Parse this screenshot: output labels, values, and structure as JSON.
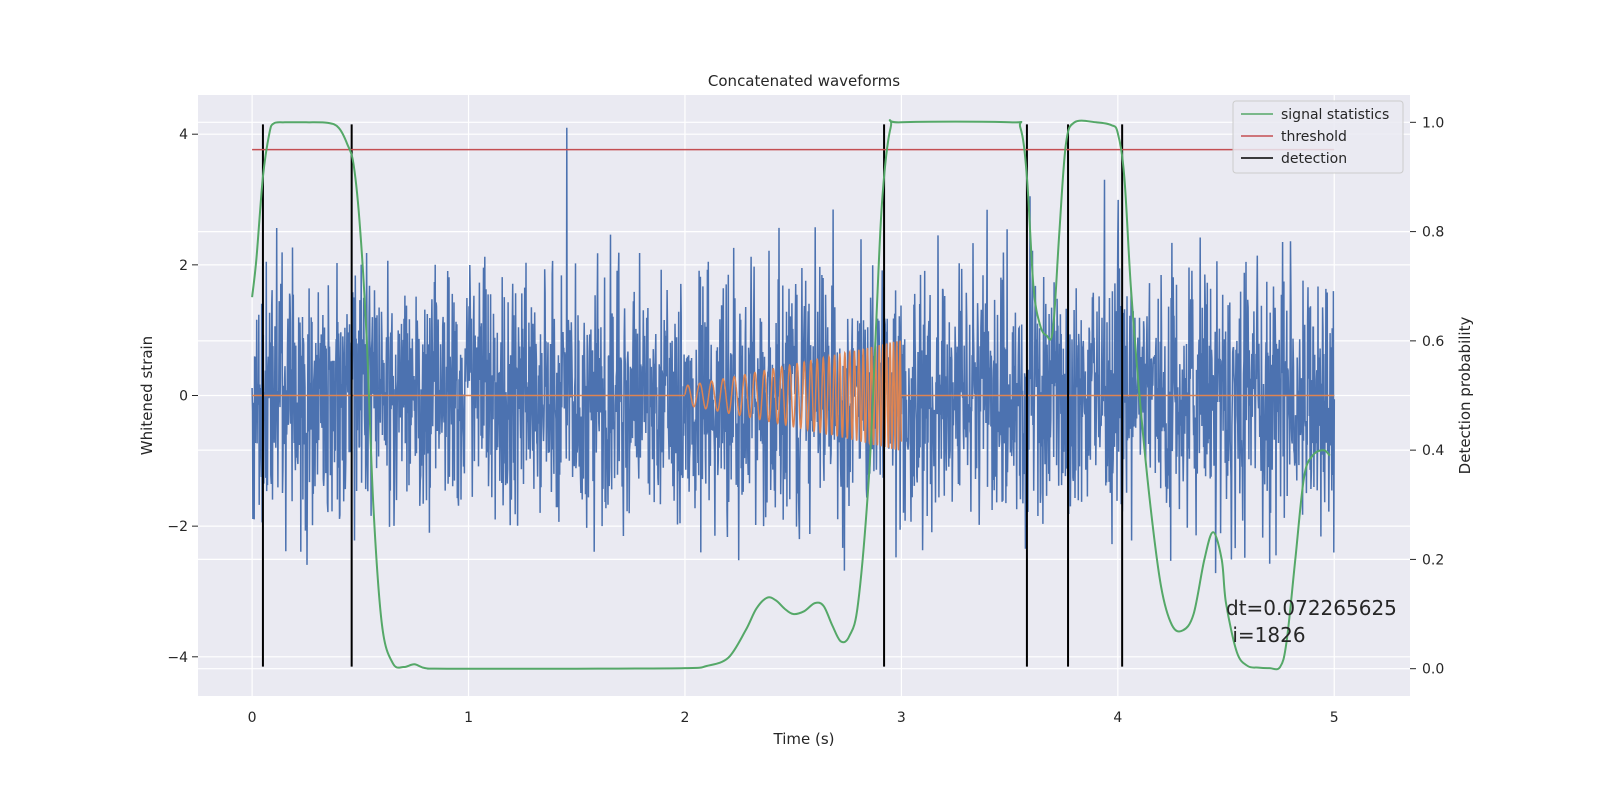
{
  "chart_data": {
    "type": "line",
    "title": "Concatenated waveforms",
    "xlabel": "Time (s)",
    "ylabel": "Whitened strain",
    "y2label": "Detection probability",
    "xlim": [
      -0.25,
      5.35
    ],
    "ylim": [
      -4.6,
      4.6
    ],
    "y2lim": [
      -0.05,
      1.05
    ],
    "xticks": [
      0,
      1,
      2,
      3,
      4,
      5
    ],
    "yticks": [
      -4,
      -2,
      0,
      2,
      4
    ],
    "y2ticks": [
      0.0,
      0.2,
      0.4,
      0.6,
      0.8,
      1.0
    ],
    "xtick_labels": [
      "0",
      "1",
      "2",
      "3",
      "4",
      "5"
    ],
    "ytick_labels": [
      "−4",
      "−2",
      "0",
      "2",
      "4"
    ],
    "y2tick_labels": [
      "0.0",
      "0.2",
      "0.4",
      "0.6",
      "0.8",
      "1.0"
    ],
    "grid": true,
    "legend_position": "top-right",
    "series": [
      {
        "name": "",
        "axis": "left",
        "color": "#4c72b0",
        "description_kind": "noise",
        "x_range": [
          0,
          5
        ],
        "amplitude": 1.0
      },
      {
        "name": "",
        "axis": "left",
        "color": "#dd8452",
        "kind": "chirp",
        "flat_ranges": [
          [
            0,
            2
          ],
          [
            3,
            5
          ]
        ],
        "chirp_range": [
          2,
          3
        ],
        "chirp_amplitude_start": 0.15,
        "chirp_amplitude_end": 0.85
      },
      {
        "name": "signal statistics",
        "axis": "right",
        "color": "#55a868",
        "x": [
          0,
          0.02,
          0.05,
          0.08,
          0.1,
          0.15,
          0.25,
          0.35,
          0.4,
          0.44,
          0.47,
          0.5,
          0.53,
          0.56,
          0.6,
          0.65,
          0.7,
          0.75,
          0.8,
          0.9,
          1.5,
          2.0,
          2.1,
          2.2,
          2.28,
          2.33,
          2.38,
          2.42,
          2.46,
          2.5,
          2.55,
          2.6,
          2.64,
          2.68,
          2.72,
          2.76,
          2.8,
          2.85,
          2.88,
          2.91,
          2.95,
          3.0,
          3.5,
          3.55,
          3.58,
          3.61,
          3.64,
          3.67,
          3.7,
          3.73,
          3.76,
          3.8,
          3.9,
          3.97,
          4.0,
          4.03,
          4.06,
          4.1,
          4.15,
          4.2,
          4.25,
          4.3,
          4.35,
          4.4,
          4.44,
          4.48,
          4.5,
          4.55,
          4.6,
          4.65,
          4.7,
          4.75,
          4.78,
          4.82,
          4.86,
          4.9,
          4.95,
          4.98
        ],
        "y": [
          0.68,
          0.75,
          0.9,
          0.98,
          0.998,
          1.0,
          1.0,
          0.999,
          0.99,
          0.96,
          0.92,
          0.8,
          0.6,
          0.3,
          0.08,
          0.01,
          0.003,
          0.008,
          0.001,
          0.0,
          0.0,
          0.001,
          0.005,
          0.02,
          0.07,
          0.11,
          0.13,
          0.125,
          0.11,
          0.1,
          0.105,
          0.12,
          0.115,
          0.08,
          0.05,
          0.06,
          0.12,
          0.35,
          0.6,
          0.85,
          0.99,
          1.0,
          1.0,
          0.99,
          0.9,
          0.7,
          0.63,
          0.61,
          0.62,
          0.8,
          0.96,
          1.0,
          1.0,
          0.995,
          0.98,
          0.9,
          0.7,
          0.5,
          0.3,
          0.15,
          0.08,
          0.07,
          0.1,
          0.2,
          0.25,
          0.2,
          0.12,
          0.03,
          0.005,
          0.002,
          0.001,
          0.003,
          0.05,
          0.2,
          0.35,
          0.39,
          0.4,
          0.39
        ]
      },
      {
        "name": "threshold",
        "axis": "right",
        "color": "#c44e52",
        "x": [
          0,
          5
        ],
        "y": [
          0.95,
          0.95
        ]
      },
      {
        "name": "detection",
        "axis": "left",
        "color": "#000000",
        "kind": "vlines",
        "x": [
          0.05,
          0.46,
          2.92,
          3.58,
          3.77,
          4.02
        ],
        "ymin": -4.15,
        "ymax": 4.15
      }
    ],
    "annotation_lines": [
      "dt=0.072265625",
      " i=1826"
    ]
  }
}
